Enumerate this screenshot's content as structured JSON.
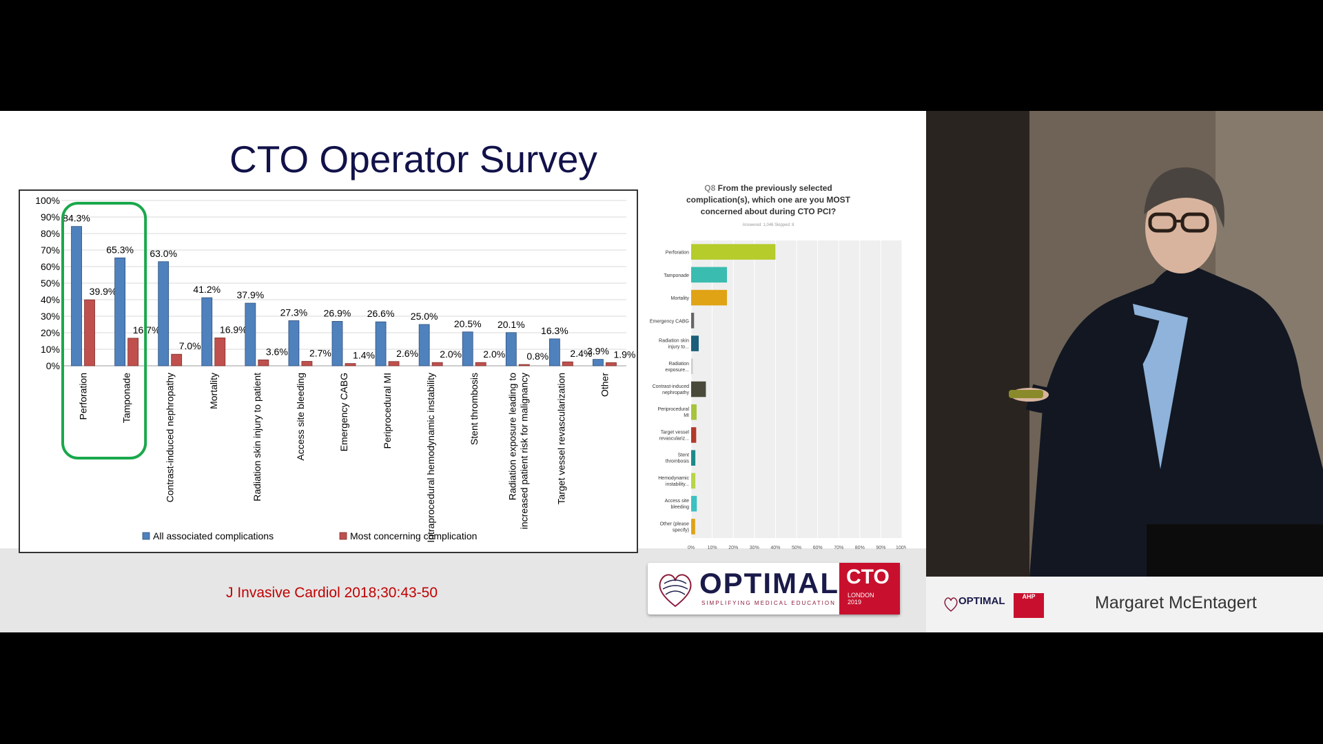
{
  "slide": {
    "title": "CTO Operator Survey",
    "citation": "J Invasive Cardiol 2018;30:43-50"
  },
  "chart_data": [
    {
      "type": "bar",
      "ylim": [
        0,
        100
      ],
      "ytick_labels": [
        "0%",
        "10%",
        "20%",
        "30%",
        "40%",
        "50%",
        "60%",
        "70%",
        "80%",
        "90%",
        "100%"
      ],
      "categories": [
        "Perforation",
        "Tamponade",
        "Contrast-induced nephropathy",
        "Mortality",
        "Radiation skin injury to patient",
        "Access site bleeding",
        "Emergency CABG",
        "Periprocedural MI",
        "Intraprocedural hemodynamic instability",
        "Stent thrombosis",
        "Radiation exposure leading to increased patient risk for malignancy",
        "Target vessel revascularization",
        "Other"
      ],
      "series": [
        {
          "name": "All associated complications",
          "color": "#4f81bd",
          "values": [
            84.3,
            65.3,
            63.0,
            41.2,
            37.9,
            27.3,
            26.9,
            26.6,
            25.0,
            20.5,
            20.1,
            16.3,
            3.9
          ],
          "labels": [
            "84.3%",
            "65.3%",
            "63.0%",
            "41.2%",
            "37.9%",
            "27.3%",
            "26.9%",
            "26.6%",
            "25.0%",
            "20.5%",
            "20.1%",
            "16.3%",
            "3.9%"
          ]
        },
        {
          "name": "Most concerning complication",
          "color": "#c0504d",
          "values": [
            39.9,
            16.7,
            7.0,
            16.9,
            3.6,
            2.7,
            1.4,
            2.6,
            2.0,
            2.0,
            0.8,
            2.4,
            1.9
          ],
          "labels": [
            "39.9%",
            "16.7%",
            "7.0%",
            "16.9%",
            "3.6%",
            "2.7%",
            "1.4%",
            "2.6%",
            "2.0%",
            "2.0%",
            "0.8%",
            "2.4%",
            "1.9%"
          ]
        }
      ],
      "highlight": {
        "categories": [
          "Perforation",
          "Tamponade"
        ],
        "color": "#1aa84b"
      }
    },
    {
      "type": "bar",
      "orientation": "horizontal",
      "question_number": "Q8",
      "title": "From the previously selected complication(s), which one are you MOST concerned about during CTO PCI?",
      "meta": "Answered: 1,046   Skipped: 8",
      "xlim": [
        0,
        100
      ],
      "xtick_labels": [
        "0%",
        "10%",
        "20%",
        "30%",
        "40%",
        "50%",
        "60%",
        "70%",
        "80%",
        "90%",
        "100%"
      ],
      "categories": [
        "Perforation",
        "Tamponade",
        "Mortality",
        "Emergency CABG",
        "Radiation skin injury to...",
        "Radiation exposure...",
        "Contrast-induced nephropathy",
        "Periprocedural MI",
        "Target vessel revasculariz...",
        "Stent thrombosis",
        "Hemodynamic instability...",
        "Access site bleeding",
        "Other (please specify)"
      ],
      "values": [
        40,
        17,
        17,
        1.4,
        3.6,
        0.8,
        7,
        2.6,
        2.4,
        2,
        2,
        2.7,
        1.9
      ],
      "colors": [
        "#b5cc2a",
        "#3bbcb0",
        "#e0a316",
        "#666666",
        "#1c5f7a",
        "#cccccc",
        "#4a4a3a",
        "#a6c43c",
        "#b23a2a",
        "#1d8a8a",
        "#b8d44a",
        "#3cc0c0",
        "#e0a316"
      ]
    }
  ],
  "sponsor_logo": {
    "word": "OPTIMAL",
    "tagline": "SIMPLIFYING MEDICAL EDUCATION",
    "event": "CTO",
    "event_sub": "LONDON",
    "year": "2019"
  },
  "speaker": {
    "name": "Margaret McEntagert",
    "logo_word": "OPTIMAL",
    "logo_badge": "AHP"
  }
}
